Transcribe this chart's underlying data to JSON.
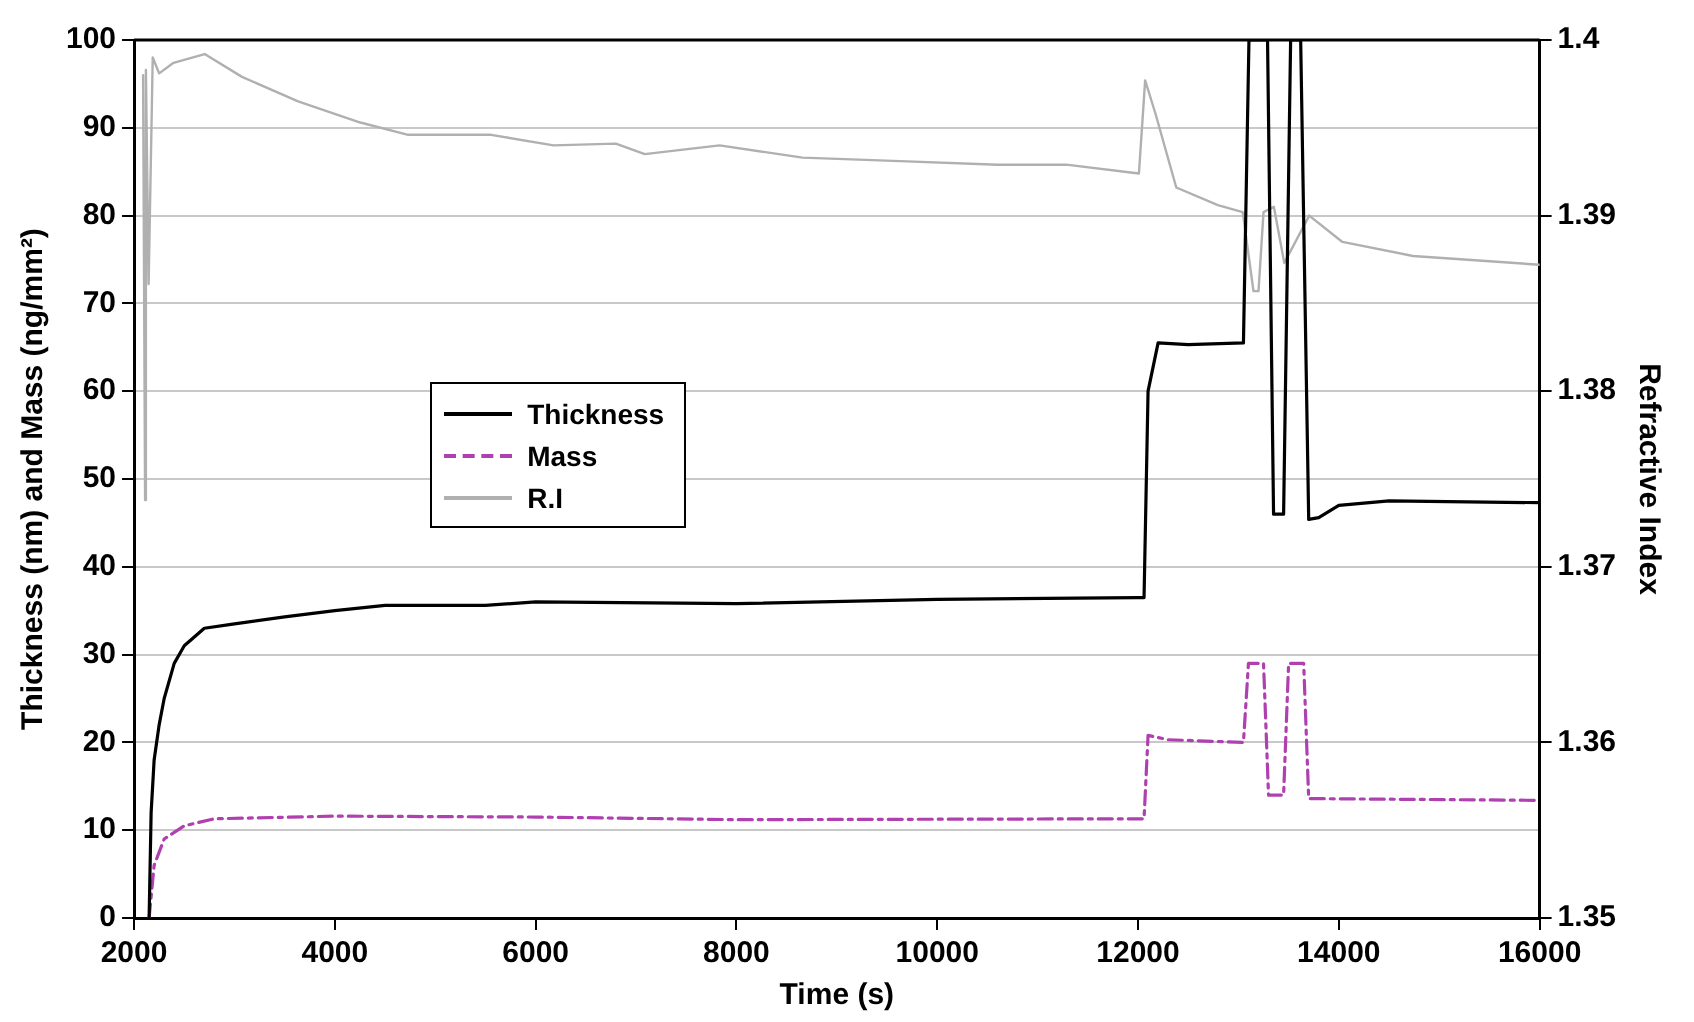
{
  "chart_data": {
    "type": "line",
    "xlabel": "Time (s)",
    "ylabel": "Thickness (nm) and Mass (ng/mm²)",
    "y2label": "Refractive Index",
    "xlim": [
      2000,
      16000
    ],
    "xticks": [
      2000,
      4000,
      6000,
      8000,
      10000,
      12000,
      14000,
      16000
    ],
    "ylim": [
      0,
      100
    ],
    "yticks": [
      0,
      10,
      20,
      30,
      40,
      50,
      60,
      70,
      80,
      90,
      100
    ],
    "y2lim": [
      1.35,
      1.4
    ],
    "y2ticks": [
      1.35,
      1.36,
      1.37,
      1.38,
      1.39,
      1.4
    ],
    "grid": "y",
    "legend": "left",
    "marker": "none",
    "series": [
      {
        "name": "Thickness",
        "color": "#000000",
        "line_style": "solid",
        "x": [
          2150,
          2170,
          2200,
          2250,
          2300,
          2400,
          2500,
          2700,
          3000,
          3500,
          4000,
          4500,
          5500,
          6000,
          8000,
          10000,
          12000,
          12060,
          12100,
          12200,
          12500,
          13050,
          13105,
          13290,
          13350,
          13450,
          13520,
          13620,
          13700,
          13800,
          14000,
          14500,
          16000
        ],
        "values": [
          0,
          12,
          18,
          22,
          25,
          29,
          31,
          33,
          33.5,
          34.3,
          35,
          35.6,
          35.6,
          36,
          35.8,
          36.3,
          36.5,
          36.5,
          60,
          65.5,
          65.3,
          65.5,
          100,
          100,
          46,
          46,
          100,
          100,
          45.4,
          45.6,
          47,
          47.5,
          47.3
        ]
      },
      {
        "name": "Mass",
        "color": "#b040b0",
        "line_style": "dashed",
        "x": [
          2150,
          2200,
          2300,
          2500,
          2800,
          4000,
          6000,
          8000,
          12000,
          12060,
          12100,
          12300,
          13050,
          13100,
          13250,
          13300,
          13450,
          13500,
          13650,
          13700,
          16000
        ],
        "values": [
          0,
          6,
          9,
          10.5,
          11.3,
          11.6,
          11.5,
          11.2,
          11.3,
          11.3,
          20.8,
          20.3,
          20,
          29,
          29,
          14,
          14,
          29,
          29,
          13.6,
          13.4
        ]
      },
      {
        "name": "R.I",
        "color": "#b0b0b0",
        "line_style": "solid",
        "axis": "y2",
        "x": [
          2090,
          2110,
          2118,
          2145,
          2186,
          2250,
          2393,
          2703,
          3075,
          3634,
          4254,
          4730,
          5557,
          6178,
          6798,
          7087,
          7832,
          8659,
          9631,
          10603,
          11285,
          12009,
          12071,
          12174,
          12381,
          12795,
          13043,
          13150,
          13200,
          13250,
          13353,
          13457,
          13705,
          14036,
          14739,
          16000
        ],
        "values": [
          1.398,
          1.3738,
          1.3983,
          1.3861,
          1.399,
          1.3981,
          1.3987,
          1.3992,
          1.3979,
          1.3965,
          1.3953,
          1.3946,
          1.3946,
          1.394,
          1.3941,
          1.3935,
          1.394,
          1.3933,
          1.3931,
          1.3929,
          1.3929,
          1.3924,
          1.3977,
          1.3958,
          1.3916,
          1.3906,
          1.3902,
          1.3857,
          1.3857,
          1.3902,
          1.3905,
          1.3873,
          1.39,
          1.3885,
          1.3877,
          1.3872
        ]
      }
    ]
  }
}
